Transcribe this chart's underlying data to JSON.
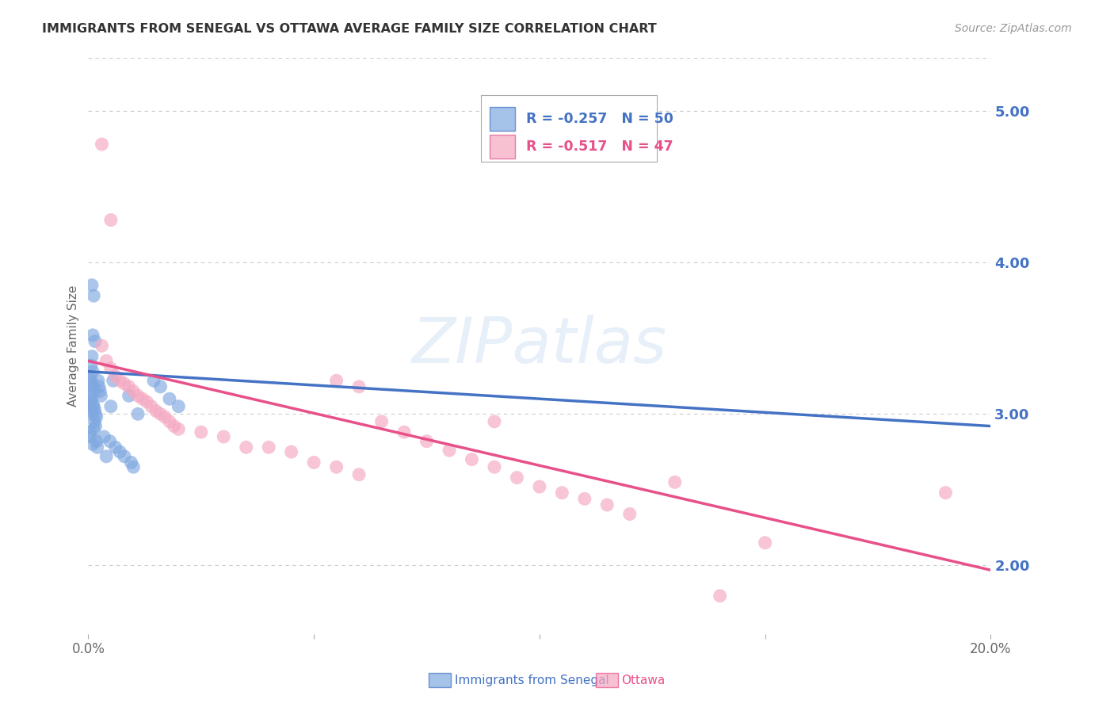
{
  "title": "IMMIGRANTS FROM SENEGAL VS OTTAWA AVERAGE FAMILY SIZE CORRELATION CHART",
  "source": "Source: ZipAtlas.com",
  "ylabel": "Average Family Size",
  "watermark": "ZIPatlas",
  "right_yticks": [
    2.0,
    3.0,
    4.0,
    5.0
  ],
  "xlim": [
    0.0,
    0.2
  ],
  "ylim": [
    1.55,
    5.35
  ],
  "legend": {
    "blue_label": "Immigrants from Senegal",
    "pink_label": "Ottawa",
    "blue_R": "-0.257",
    "blue_N": "50",
    "pink_R": "-0.517",
    "pink_N": "47"
  },
  "blue_scatter": [
    [
      0.0008,
      3.85
    ],
    [
      0.0012,
      3.78
    ],
    [
      0.001,
      3.52
    ],
    [
      0.0015,
      3.48
    ],
    [
      0.0008,
      3.38
    ],
    [
      0.0006,
      3.32
    ],
    [
      0.001,
      3.28
    ],
    [
      0.0004,
      3.25
    ],
    [
      0.0006,
      3.22
    ],
    [
      0.0008,
      3.2
    ],
    [
      0.001,
      3.18
    ],
    [
      0.0012,
      3.15
    ],
    [
      0.0006,
      3.12
    ],
    [
      0.0008,
      3.1
    ],
    [
      0.0004,
      3.08
    ],
    [
      0.001,
      3.06
    ],
    [
      0.0012,
      3.05
    ],
    [
      0.0014,
      3.03
    ],
    [
      0.0006,
      3.02
    ],
    [
      0.0008,
      3.0
    ],
    [
      0.0016,
      3.0
    ],
    [
      0.0018,
      2.98
    ],
    [
      0.0014,
      2.95
    ],
    [
      0.0016,
      2.92
    ],
    [
      0.0012,
      2.9
    ],
    [
      0.0004,
      2.88
    ],
    [
      0.0006,
      2.85
    ],
    [
      0.0018,
      2.82
    ],
    [
      0.001,
      2.8
    ],
    [
      0.002,
      2.78
    ],
    [
      0.0022,
      3.22
    ],
    [
      0.0024,
      3.18
    ],
    [
      0.0026,
      3.15
    ],
    [
      0.0028,
      3.12
    ],
    [
      0.0055,
      3.22
    ],
    [
      0.009,
      3.12
    ],
    [
      0.011,
      3.0
    ],
    [
      0.0145,
      3.22
    ],
    [
      0.016,
      3.18
    ],
    [
      0.018,
      3.1
    ],
    [
      0.02,
      3.05
    ],
    [
      0.0048,
      2.82
    ],
    [
      0.006,
      2.78
    ],
    [
      0.007,
      2.75
    ],
    [
      0.008,
      2.72
    ],
    [
      0.0095,
      2.68
    ],
    [
      0.01,
      2.65
    ],
    [
      0.0035,
      2.85
    ],
    [
      0.004,
      2.72
    ],
    [
      0.005,
      3.05
    ]
  ],
  "pink_scatter": [
    [
      0.003,
      4.78
    ],
    [
      0.005,
      4.28
    ],
    [
      0.003,
      3.45
    ],
    [
      0.004,
      3.35
    ],
    [
      0.005,
      3.3
    ],
    [
      0.006,
      3.25
    ],
    [
      0.007,
      3.22
    ],
    [
      0.008,
      3.2
    ],
    [
      0.009,
      3.18
    ],
    [
      0.01,
      3.15
    ],
    [
      0.011,
      3.12
    ],
    [
      0.012,
      3.1
    ],
    [
      0.013,
      3.08
    ],
    [
      0.014,
      3.05
    ],
    [
      0.015,
      3.02
    ],
    [
      0.016,
      3.0
    ],
    [
      0.017,
      2.98
    ],
    [
      0.018,
      2.95
    ],
    [
      0.019,
      2.92
    ],
    [
      0.02,
      2.9
    ],
    [
      0.025,
      2.88
    ],
    [
      0.03,
      2.85
    ],
    [
      0.035,
      2.78
    ],
    [
      0.04,
      2.78
    ],
    [
      0.045,
      2.75
    ],
    [
      0.05,
      2.68
    ],
    [
      0.055,
      2.65
    ],
    [
      0.06,
      2.6
    ],
    [
      0.065,
      2.95
    ],
    [
      0.07,
      2.88
    ],
    [
      0.075,
      2.82
    ],
    [
      0.08,
      2.76
    ],
    [
      0.085,
      2.7
    ],
    [
      0.09,
      2.65
    ],
    [
      0.095,
      2.58
    ],
    [
      0.1,
      2.52
    ],
    [
      0.105,
      2.48
    ],
    [
      0.11,
      2.44
    ],
    [
      0.115,
      2.4
    ],
    [
      0.12,
      2.34
    ],
    [
      0.055,
      3.22
    ],
    [
      0.06,
      3.18
    ],
    [
      0.09,
      2.95
    ],
    [
      0.13,
      2.55
    ],
    [
      0.14,
      1.8
    ],
    [
      0.15,
      2.15
    ],
    [
      0.19,
      2.48
    ]
  ],
  "blue_line": {
    "x": [
      0.0,
      0.2
    ],
    "y": [
      3.28,
      2.92
    ]
  },
  "pink_line": {
    "x": [
      0.0,
      0.2
    ],
    "y": [
      3.35,
      1.97
    ]
  },
  "blue_line_color": "#4472C4",
  "pink_line_color": "#E8508A",
  "blue_scatter_color": "#7FA8E0",
  "pink_scatter_color": "#F4A7C0",
  "grid_color": "#CCCCCC",
  "right_axis_color": "#4472C4",
  "title_color": "#333333",
  "source_color": "#999999"
}
